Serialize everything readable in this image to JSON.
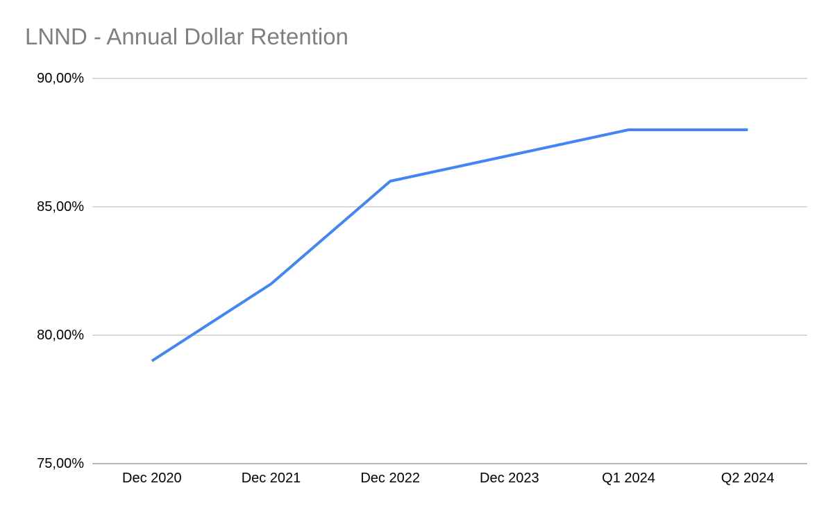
{
  "chart_data": {
    "type": "line",
    "title": "LNND - Annual Dollar Retention",
    "categories": [
      "Dec 2020",
      "Dec 2021",
      "Dec 2022",
      "Dec 2023",
      "Q1 2024",
      "Q2 2024"
    ],
    "values": [
      79.0,
      82.0,
      86.0,
      87.0,
      88.0,
      88.0
    ],
    "values_unit": "%",
    "ylim": [
      75,
      90
    ],
    "yticks": [
      {
        "value": 90,
        "label": "90,00%"
      },
      {
        "value": 85,
        "label": "85,00%"
      },
      {
        "value": 80,
        "label": "80,00%"
      },
      {
        "value": 75,
        "label": "75,00%"
      }
    ],
    "xlabel": "",
    "ylabel": "",
    "grid": true,
    "legend": "none",
    "markers": false,
    "colors": {
      "line": "#4285f4",
      "gridline": "#d9d9d9",
      "axis_line": "#b7b7b7",
      "title": "#7f7f7f",
      "tick_label": "#000000",
      "background": "#ffffff"
    }
  }
}
